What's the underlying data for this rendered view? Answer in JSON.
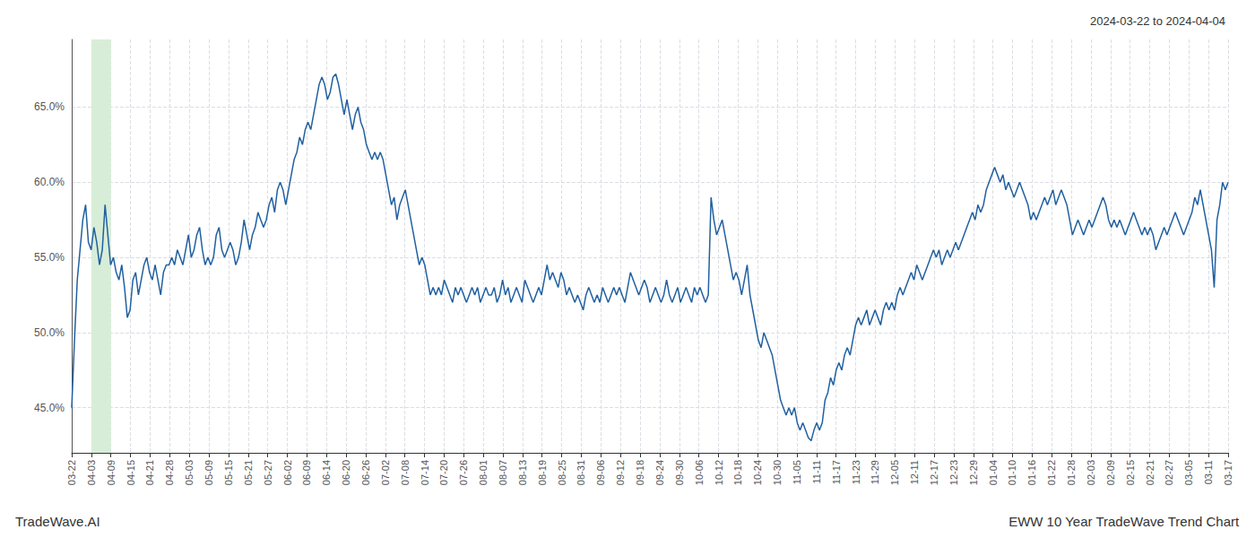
{
  "chart_data": {
    "type": "line",
    "annotations": [
      "2024-03-22 to 2024-04-04",
      "TradeWave.AI",
      "EWW 10 Year TradeWave Trend Chart"
    ],
    "color": "#2060a0",
    "grid": true,
    "shading": {
      "x": [
        1,
        2
      ],
      "color": "#d8edd8"
    },
    "xlim": [
      0,
      59
    ],
    "xticks": [
      {
        "value": 0,
        "label": "03-22"
      },
      {
        "value": 1,
        "label": "04-03"
      },
      {
        "value": 2,
        "label": "04-09"
      },
      {
        "value": 3,
        "label": "04-15"
      },
      {
        "value": 4,
        "label": "04-21"
      },
      {
        "value": 5,
        "label": "04-28"
      },
      {
        "value": 6,
        "label": "05-03"
      },
      {
        "value": 7,
        "label": "05-09"
      },
      {
        "value": 8,
        "label": "05-15"
      },
      {
        "value": 9,
        "label": "05-21"
      },
      {
        "value": 10,
        "label": "05-27"
      },
      {
        "value": 11,
        "label": "06-02"
      },
      {
        "value": 12,
        "label": "06-09"
      },
      {
        "value": 13,
        "label": "06-14"
      },
      {
        "value": 14,
        "label": "06-20"
      },
      {
        "value": 15,
        "label": "06-26"
      },
      {
        "value": 16,
        "label": "07-02"
      },
      {
        "value": 17,
        "label": "07-08"
      },
      {
        "value": 18,
        "label": "07-14"
      },
      {
        "value": 19,
        "label": "07-20"
      },
      {
        "value": 20,
        "label": "07-26"
      },
      {
        "value": 21,
        "label": "08-01"
      },
      {
        "value": 22,
        "label": "08-07"
      },
      {
        "value": 23,
        "label": "08-13"
      },
      {
        "value": 24,
        "label": "08-19"
      },
      {
        "value": 25,
        "label": "08-25"
      },
      {
        "value": 26,
        "label": "08-31"
      },
      {
        "value": 27,
        "label": "09-06"
      },
      {
        "value": 28,
        "label": "09-12"
      },
      {
        "value": 29,
        "label": "09-18"
      },
      {
        "value": 30,
        "label": "09-24"
      },
      {
        "value": 31,
        "label": "09-30"
      },
      {
        "value": 32,
        "label": "10-06"
      },
      {
        "value": 33,
        "label": "10-12"
      },
      {
        "value": 34,
        "label": "10-18"
      },
      {
        "value": 35,
        "label": "10-24"
      },
      {
        "value": 36,
        "label": "10-30"
      },
      {
        "value": 37,
        "label": "11-05"
      },
      {
        "value": 38,
        "label": "11-11"
      },
      {
        "value": 39,
        "label": "11-17"
      },
      {
        "value": 40,
        "label": "11-23"
      },
      {
        "value": 41,
        "label": "11-29"
      },
      {
        "value": 42,
        "label": "12-05"
      },
      {
        "value": 43,
        "label": "12-11"
      },
      {
        "value": 44,
        "label": "12-17"
      },
      {
        "value": 45,
        "label": "12-23"
      },
      {
        "value": 46,
        "label": "12-29"
      },
      {
        "value": 47,
        "label": "01-04"
      },
      {
        "value": 48,
        "label": "01-10"
      },
      {
        "value": 49,
        "label": "01-16"
      },
      {
        "value": 50,
        "label": "01-22"
      },
      {
        "value": 51,
        "label": "01-28"
      },
      {
        "value": 52,
        "label": "02-03"
      },
      {
        "value": 53,
        "label": "02-09"
      },
      {
        "value": 54,
        "label": "02-15"
      },
      {
        "value": 55,
        "label": "02-21"
      },
      {
        "value": 56,
        "label": "02-27"
      },
      {
        "value": 57,
        "label": "03-05"
      },
      {
        "value": 58,
        "label": "03-11"
      },
      {
        "value": 59,
        "label": "03-17"
      }
    ],
    "ylim": [
      42.0,
      69.5
    ],
    "yticks": [
      {
        "value": 45.0,
        "label": "45.0%"
      },
      {
        "value": 50.0,
        "label": "50.0%"
      },
      {
        "value": 55.0,
        "label": "55.0%"
      },
      {
        "value": 60.0,
        "label": "60.0%"
      },
      {
        "value": 65.0,
        "label": "65.0%"
      }
    ],
    "values": [
      45.0,
      49.5,
      53.5,
      55.5,
      57.5,
      58.5,
      56.0,
      55.5,
      57.0,
      56.0,
      54.5,
      55.5,
      58.5,
      56.5,
      54.5,
      55.0,
      54.0,
      53.5,
      54.5,
      53.0,
      51.0,
      51.5,
      53.5,
      54.0,
      52.5,
      53.5,
      54.5,
      55.0,
      54.0,
      53.5,
      54.5,
      53.5,
      52.5,
      54.0,
      54.5,
      54.5,
      55.0,
      54.5,
      55.5,
      55.0,
      54.5,
      55.5,
      56.5,
      55.0,
      55.5,
      56.5,
      57.0,
      55.5,
      54.5,
      55.0,
      54.5,
      55.0,
      56.5,
      57.0,
      55.5,
      55.0,
      55.5,
      56.0,
      55.5,
      54.5,
      55.0,
      56.0,
      57.5,
      56.5,
      55.5,
      56.5,
      57.0,
      58.0,
      57.5,
      57.0,
      57.5,
      58.5,
      59.0,
      58.0,
      59.5,
      60.0,
      59.5,
      58.5,
      59.5,
      60.5,
      61.5,
      62.0,
      63.0,
      62.5,
      63.5,
      64.0,
      63.5,
      64.5,
      65.5,
      66.5,
      67.0,
      66.5,
      65.5,
      66.0,
      67.0,
      67.2,
      66.5,
      65.5,
      64.5,
      65.5,
      64.5,
      63.5,
      64.5,
      65.0,
      64.0,
      63.5,
      62.5,
      62.0,
      61.5,
      62.0,
      61.5,
      62.0,
      61.5,
      60.5,
      59.5,
      58.5,
      59.0,
      57.5,
      58.5,
      59.0,
      59.5,
      58.5,
      57.5,
      56.5,
      55.5,
      54.5,
      55.0,
      54.5,
      53.5,
      52.5,
      53.0,
      52.5,
      53.0,
      52.5,
      53.5,
      53.0,
      52.5,
      52.0,
      53.0,
      52.5,
      53.0,
      52.5,
      52.0,
      52.5,
      53.0,
      52.5,
      53.0,
      52.0,
      52.5,
      53.0,
      52.5,
      52.5,
      53.0,
      52.0,
      52.5,
      53.5,
      52.5,
      53.0,
      52.0,
      52.5,
      53.0,
      52.5,
      52.0,
      53.5,
      53.0,
      52.5,
      52.0,
      52.5,
      53.0,
      52.5,
      53.5,
      54.5,
      53.5,
      54.0,
      53.5,
      53.0,
      54.0,
      53.5,
      52.5,
      53.0,
      52.5,
      52.0,
      52.5,
      52.0,
      51.5,
      52.5,
      53.0,
      52.5,
      52.0,
      52.5,
      52.0,
      53.0,
      52.5,
      52.0,
      52.5,
      53.0,
      52.5,
      53.0,
      52.5,
      52.0,
      53.0,
      54.0,
      53.5,
      53.0,
      52.5,
      53.0,
      53.5,
      53.0,
      52.0,
      52.5,
      53.0,
      52.5,
      52.0,
      52.5,
      53.5,
      52.5,
      52.0,
      52.5,
      53.0,
      52.0,
      52.5,
      53.0,
      52.5,
      52.0,
      53.0,
      52.5,
      53.0,
      52.5,
      52.0,
      52.5,
      59.0,
      57.5,
      56.5,
      57.0,
      57.5,
      56.5,
      55.5,
      54.5,
      53.5,
      54.0,
      53.5,
      52.5,
      53.5,
      54.5,
      52.5,
      51.5,
      50.5,
      49.5,
      49.0,
      50.0,
      49.5,
      49.0,
      48.5,
      47.5,
      46.5,
      45.5,
      45.0,
      44.5,
      45.0,
      44.5,
      45.0,
      44.0,
      43.5,
      44.0,
      43.5,
      43.0,
      42.8,
      43.5,
      44.0,
      43.5,
      44.0,
      45.5,
      46.0,
      47.0,
      46.5,
      47.5,
      48.0,
      47.5,
      48.5,
      49.0,
      48.5,
      49.5,
      50.5,
      51.0,
      50.5,
      51.0,
      51.5,
      50.5,
      51.0,
      51.5,
      51.0,
      50.5,
      51.5,
      52.0,
      51.5,
      52.0,
      51.5,
      52.5,
      53.0,
      52.5,
      53.0,
      53.5,
      54.0,
      53.5,
      54.5,
      54.0,
      53.5,
      54.0,
      54.5,
      55.0,
      55.5,
      55.0,
      55.5,
      54.5,
      55.0,
      55.5,
      55.0,
      55.5,
      56.0,
      55.5,
      56.0,
      56.5,
      57.0,
      57.5,
      58.0,
      57.5,
      58.5,
      58.0,
      58.5,
      59.5,
      60.0,
      60.5,
      61.0,
      60.5,
      60.0,
      60.5,
      59.5,
      60.0,
      59.5,
      59.0,
      59.5,
      60.0,
      59.5,
      59.0,
      58.5,
      57.5,
      58.0,
      57.5,
      58.0,
      58.5,
      59.0,
      58.5,
      59.0,
      59.5,
      58.5,
      59.0,
      59.5,
      59.0,
      58.5,
      57.5,
      56.5,
      57.0,
      57.5,
      57.0,
      56.5,
      57.0,
      57.5,
      57.0,
      57.5,
      58.0,
      58.5,
      59.0,
      58.5,
      57.5,
      57.0,
      57.5,
      57.0,
      57.5,
      57.0,
      56.5,
      57.0,
      57.5,
      58.0,
      57.5,
      57.0,
      56.5,
      57.0,
      56.5,
      57.0,
      56.5,
      55.5,
      56.0,
      56.5,
      57.0,
      56.5,
      57.0,
      57.5,
      58.0,
      57.5,
      57.0,
      56.5,
      57.0,
      57.5,
      58.0,
      59.0,
      58.5,
      59.5,
      58.5,
      57.5,
      56.5,
      55.5,
      53.0,
      57.5,
      58.5,
      60.0,
      59.5,
      60.0
    ]
  }
}
